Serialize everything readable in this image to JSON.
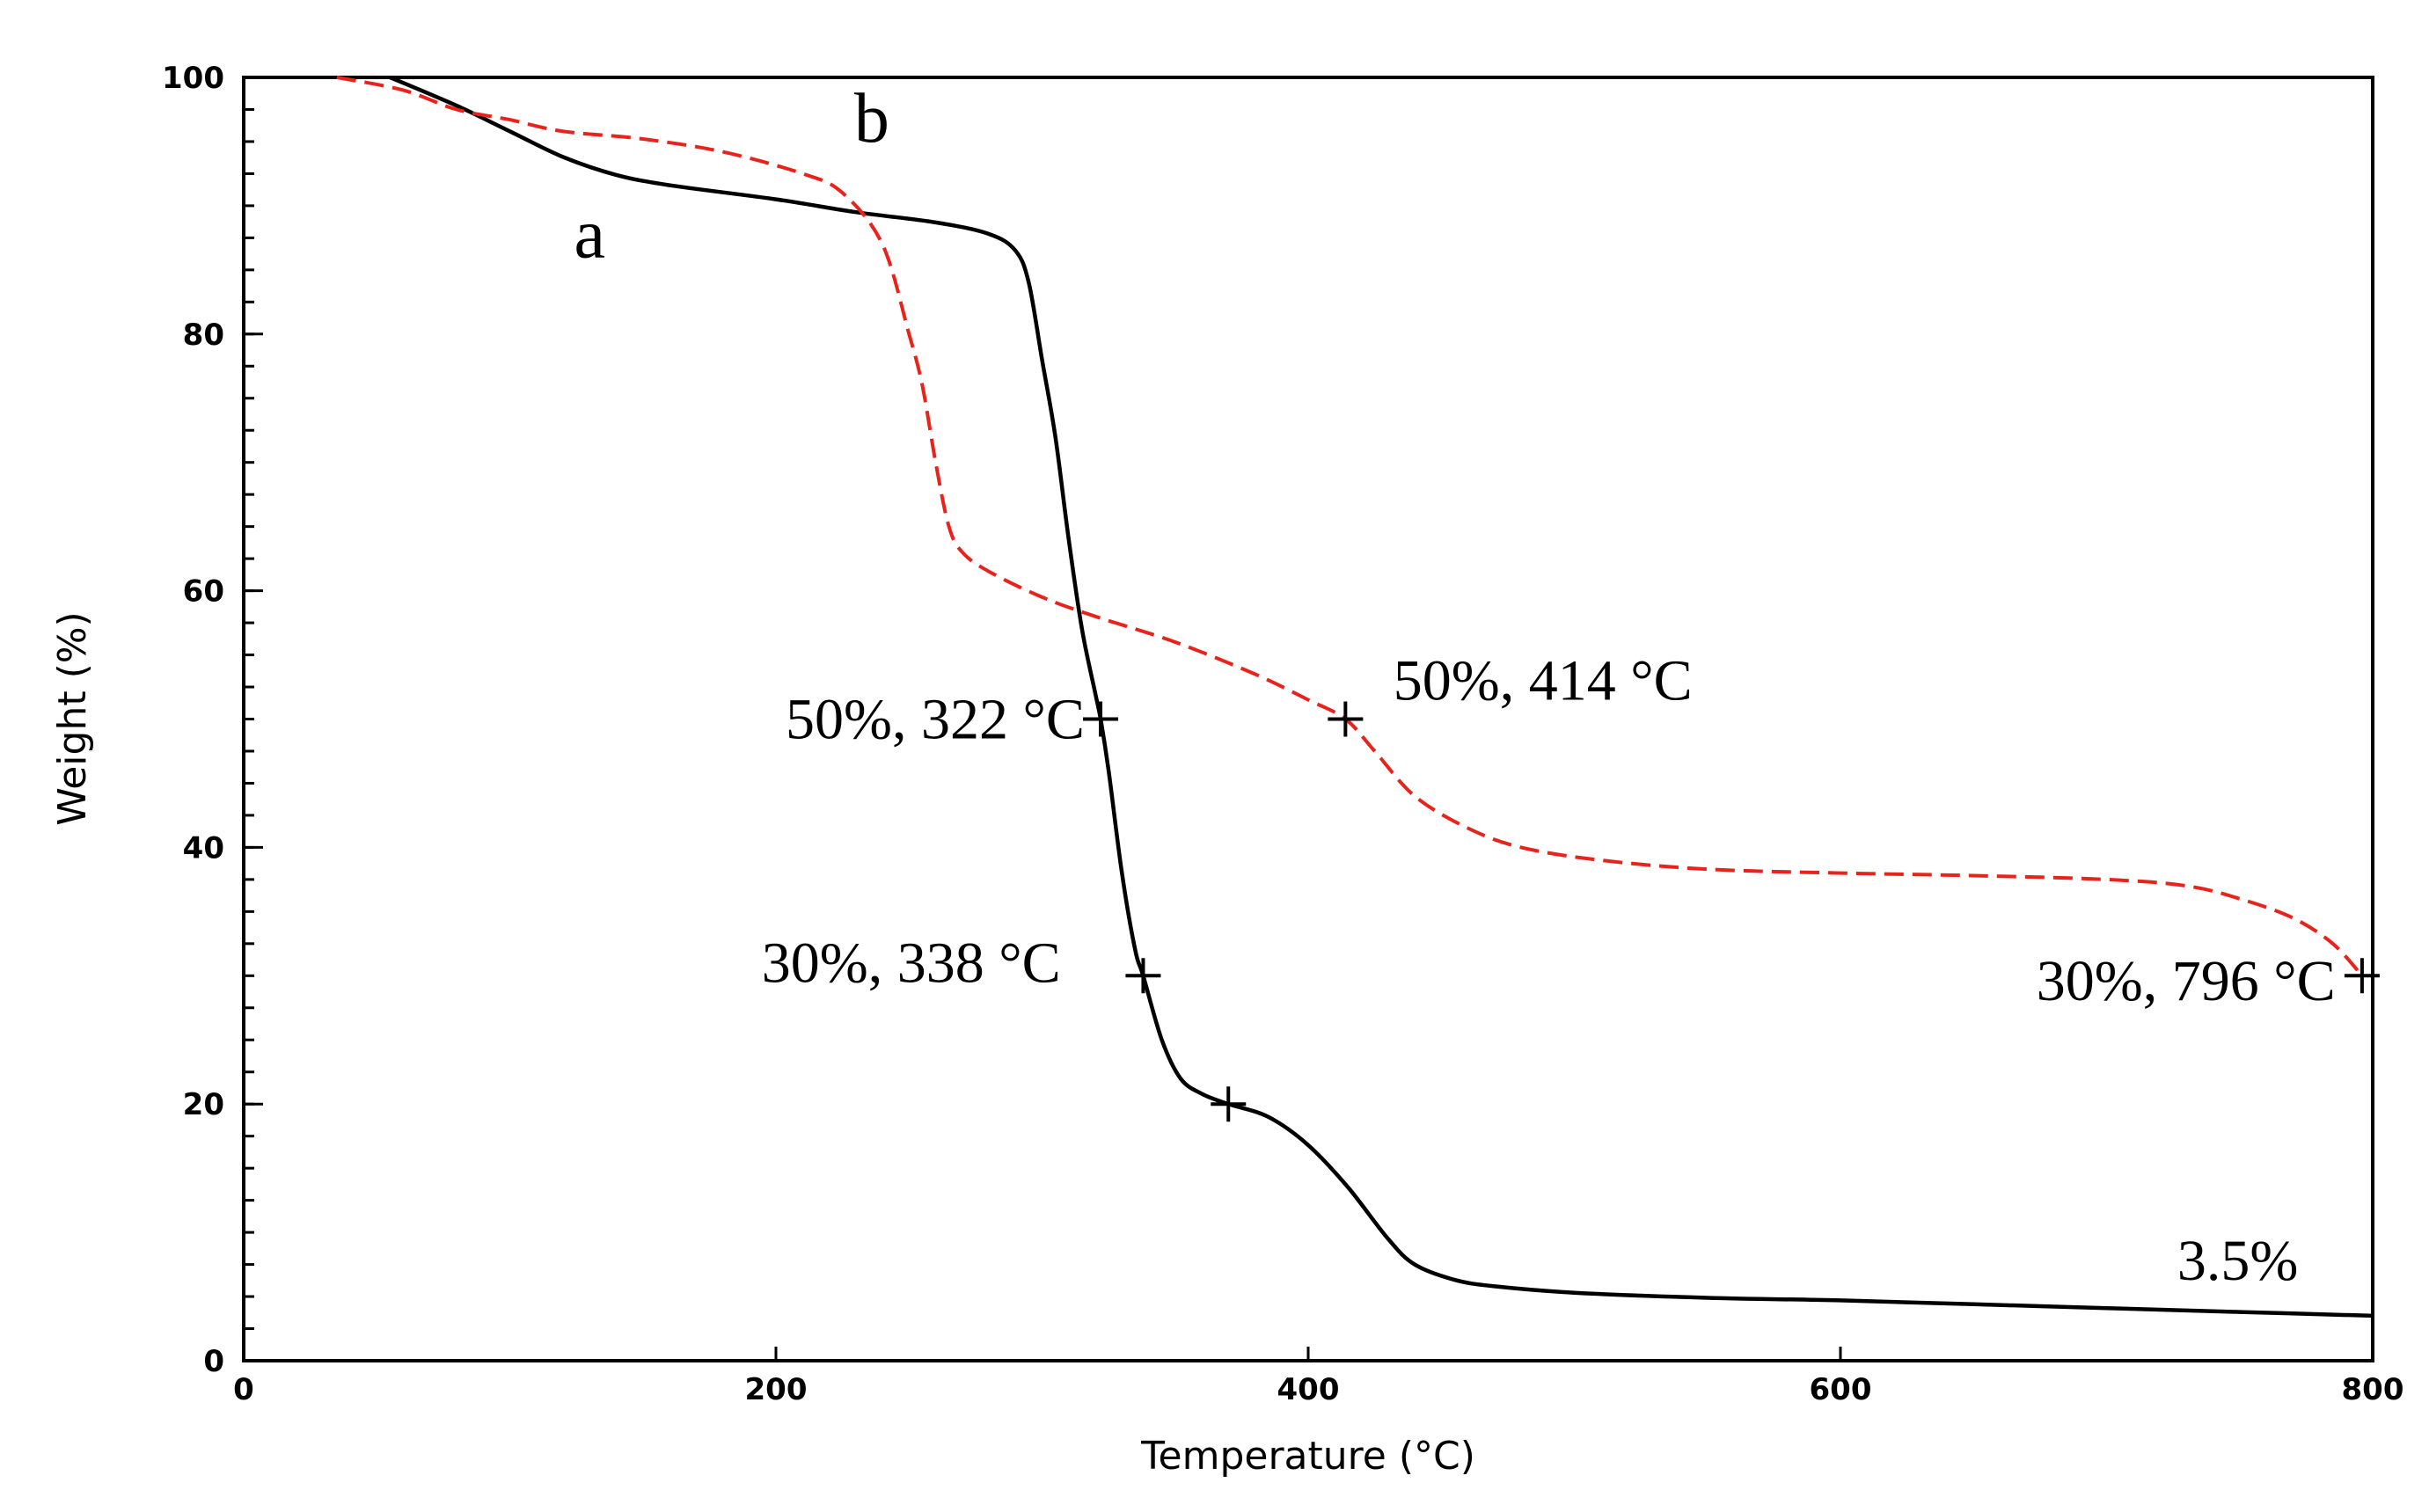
{
  "chart_data": {
    "type": "line",
    "title": "",
    "xlabel": "Temperature (°C)",
    "ylabel": "Weight (%)",
    "xlim": [
      0,
      800
    ],
    "ylim": [
      0,
      100
    ],
    "xticks": [
      0,
      200,
      400,
      600,
      800
    ],
    "yticks": [
      0,
      20,
      40,
      60,
      80,
      100
    ],
    "grid": false,
    "series": [
      {
        "name": "a",
        "color": "#000000",
        "dash": "solid",
        "label_position": [
          130,
          86
        ],
        "points": [
          [
            55,
            100
          ],
          [
            80,
            97.8
          ],
          [
            100,
            95.8
          ],
          [
            120,
            93.8
          ],
          [
            140,
            92.4
          ],
          [
            160,
            91.6
          ],
          [
            200,
            90.5
          ],
          [
            230,
            89.5
          ],
          [
            260,
            88.7
          ],
          [
            280,
            87.8
          ],
          [
            290,
            86.5
          ],
          [
            295,
            84
          ],
          [
            300,
            78
          ],
          [
            305,
            72
          ],
          [
            310,
            64
          ],
          [
            315,
            57
          ],
          [
            320,
            52
          ],
          [
            322,
            50
          ],
          [
            325,
            46
          ],
          [
            330,
            38
          ],
          [
            335,
            32
          ],
          [
            338,
            30
          ],
          [
            345,
            25
          ],
          [
            352,
            22
          ],
          [
            360,
            20.8
          ],
          [
            370,
            20
          ],
          [
            385,
            19
          ],
          [
            400,
            16.8
          ],
          [
            415,
            13.5
          ],
          [
            430,
            9.5
          ],
          [
            440,
            7.5
          ],
          [
            455,
            6.3
          ],
          [
            470,
            5.8
          ],
          [
            500,
            5.3
          ],
          [
            550,
            4.9
          ],
          [
            600,
            4.7
          ],
          [
            650,
            4.4
          ],
          [
            700,
            4.1
          ],
          [
            750,
            3.8
          ],
          [
            800,
            3.5
          ]
        ]
      },
      {
        "name": "b",
        "color": "#e8231b",
        "dash": "dashed",
        "label_position": [
          236,
          95
        ],
        "points": [
          [
            35,
            100
          ],
          [
            60,
            99
          ],
          [
            80,
            97.5
          ],
          [
            100,
            96.7
          ],
          [
            120,
            95.8
          ],
          [
            150,
            95.2
          ],
          [
            180,
            94.2
          ],
          [
            210,
            92.5
          ],
          [
            225,
            91
          ],
          [
            240,
            87
          ],
          [
            250,
            80
          ],
          [
            255,
            76
          ],
          [
            260,
            70
          ],
          [
            265,
            65
          ],
          [
            270,
            63
          ],
          [
            280,
            61.5
          ],
          [
            300,
            59.5
          ],
          [
            320,
            58
          ],
          [
            350,
            56
          ],
          [
            380,
            53.5
          ],
          [
            400,
            51.5
          ],
          [
            414,
            50
          ],
          [
            425,
            47.5
          ],
          [
            440,
            44
          ],
          [
            460,
            41.5
          ],
          [
            480,
            40
          ],
          [
            510,
            39
          ],
          [
            550,
            38.3
          ],
          [
            600,
            38
          ],
          [
            650,
            37.8
          ],
          [
            700,
            37.5
          ],
          [
            730,
            37
          ],
          [
            750,
            36
          ],
          [
            770,
            34.5
          ],
          [
            785,
            32.5
          ],
          [
            796,
            30
          ]
        ]
      }
    ],
    "markers": [
      {
        "series": "a",
        "x": 322,
        "y": 50
      },
      {
        "series": "a",
        "x": 338,
        "y": 30
      },
      {
        "series": "a",
        "x": 370,
        "y": 20
      },
      {
        "series": "b",
        "x": 414,
        "y": 50
      },
      {
        "series": "b",
        "x": 796,
        "y": 30
      }
    ],
    "annotations": [
      {
        "text": "50%, 322 °C",
        "x": 316,
        "y": 50,
        "anchor": "end"
      },
      {
        "text": "30%, 338 °C",
        "x": 307,
        "y": 31,
        "anchor": "end"
      },
      {
        "text": "50%, 414 °C",
        "x": 432,
        "y": 53,
        "anchor": "start"
      },
      {
        "text": "30%, 796 °C",
        "x": 786,
        "y": 29.6,
        "anchor": "end"
      },
      {
        "text": "3.5%",
        "x": 772,
        "y": 7.8,
        "anchor": "end"
      }
    ]
  }
}
